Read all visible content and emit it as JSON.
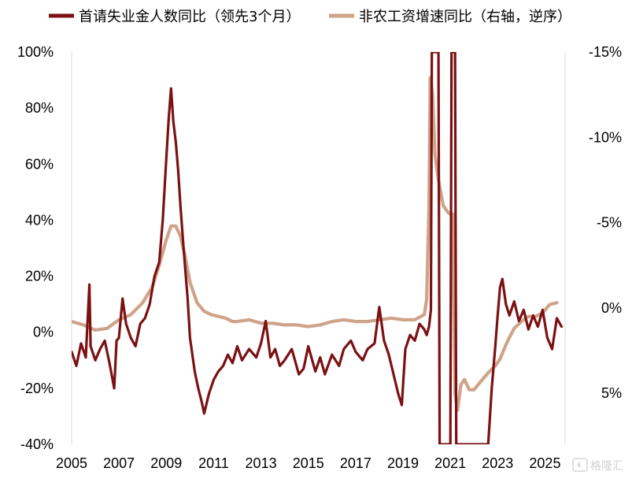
{
  "chart_data": {
    "type": "line",
    "title": "",
    "xlabel": "",
    "ylabel": "",
    "x_ticks": [
      "2005",
      "2007",
      "2009",
      "2011",
      "2013",
      "2015",
      "2017",
      "2019",
      "2021",
      "2023",
      "2025"
    ],
    "y_left": {
      "ticks": [
        100,
        80,
        60,
        40,
        20,
        0,
        -20,
        -40
      ],
      "tick_labels": [
        "100%",
        "80%",
        "60%",
        "40%",
        "20%",
        "0%",
        "-20%",
        "-40%"
      ],
      "range": [
        -40,
        100
      ]
    },
    "y_right": {
      "reversed": true,
      "ticks": [
        -15,
        -10,
        -5,
        0,
        5
      ],
      "tick_labels": [
        "-15%",
        "-10%",
        "-5%",
        "0%",
        "5%"
      ],
      "range": [
        -15,
        8
      ]
    },
    "legend_position": "top",
    "series": [
      {
        "name": "首请失业金人数同比（领先3个月）",
        "axis": "left",
        "color": "#7b1113",
        "points": [
          [
            2005.0,
            -7
          ],
          [
            2005.2,
            -12
          ],
          [
            2005.4,
            -4
          ],
          [
            2005.6,
            -9
          ],
          [
            2005.75,
            17
          ],
          [
            2005.8,
            -5
          ],
          [
            2006.0,
            -10
          ],
          [
            2006.2,
            -6
          ],
          [
            2006.4,
            -3
          ],
          [
            2006.6,
            -11
          ],
          [
            2006.8,
            -20
          ],
          [
            2006.9,
            -3
          ],
          [
            2007.0,
            -2
          ],
          [
            2007.15,
            12
          ],
          [
            2007.3,
            3
          ],
          [
            2007.5,
            -2
          ],
          [
            2007.7,
            -5
          ],
          [
            2007.9,
            3
          ],
          [
            2008.1,
            5
          ],
          [
            2008.3,
            10
          ],
          [
            2008.5,
            20
          ],
          [
            2008.7,
            25
          ],
          [
            2008.85,
            40
          ],
          [
            2009.0,
            62
          ],
          [
            2009.1,
            76
          ],
          [
            2009.2,
            87
          ],
          [
            2009.3,
            75
          ],
          [
            2009.4,
            68
          ],
          [
            2009.5,
            58
          ],
          [
            2009.6,
            45
          ],
          [
            2009.75,
            28
          ],
          [
            2009.9,
            12
          ],
          [
            2010.0,
            -2
          ],
          [
            2010.1,
            -8
          ],
          [
            2010.2,
            -14
          ],
          [
            2010.35,
            -20
          ],
          [
            2010.5,
            -25
          ],
          [
            2010.6,
            -29
          ],
          [
            2010.8,
            -22
          ],
          [
            2011.0,
            -17
          ],
          [
            2011.2,
            -14
          ],
          [
            2011.4,
            -12
          ],
          [
            2011.6,
            -8
          ],
          [
            2011.8,
            -11
          ],
          [
            2012.0,
            -5
          ],
          [
            2012.2,
            -10
          ],
          [
            2012.5,
            -6
          ],
          [
            2012.8,
            -9
          ],
          [
            2013.0,
            -4
          ],
          [
            2013.2,
            4
          ],
          [
            2013.4,
            -9
          ],
          [
            2013.6,
            -6
          ],
          [
            2013.8,
            -12
          ],
          [
            2014.0,
            -10
          ],
          [
            2014.3,
            -6
          ],
          [
            2014.6,
            -15
          ],
          [
            2014.8,
            -13
          ],
          [
            2015.0,
            -5
          ],
          [
            2015.3,
            -14
          ],
          [
            2015.5,
            -9
          ],
          [
            2015.7,
            -15
          ],
          [
            2016.0,
            -8
          ],
          [
            2016.3,
            -12
          ],
          [
            2016.5,
            -6
          ],
          [
            2016.8,
            -3
          ],
          [
            2017.0,
            -7
          ],
          [
            2017.3,
            -10
          ],
          [
            2017.5,
            -6
          ],
          [
            2017.8,
            -4
          ],
          [
            2018.0,
            9
          ],
          [
            2018.2,
            -3
          ],
          [
            2018.4,
            -8
          ],
          [
            2018.6,
            -15
          ],
          [
            2018.8,
            -22
          ],
          [
            2018.95,
            -26
          ],
          [
            2019.1,
            -6
          ],
          [
            2019.3,
            -1
          ],
          [
            2019.5,
            -3
          ],
          [
            2019.7,
            3
          ],
          [
            2019.9,
            1
          ],
          [
            2020.0,
            -1
          ],
          [
            2020.1,
            2
          ],
          [
            2020.18,
            8
          ],
          [
            2020.22,
            100
          ],
          [
            2020.5,
            100
          ],
          [
            2020.55,
            -40
          ],
          [
            2021.0,
            -40
          ],
          [
            2021.05,
            100
          ],
          [
            2021.2,
            100
          ],
          [
            2021.25,
            -40
          ],
          [
            2022.6,
            -40
          ],
          [
            2022.75,
            -20
          ],
          [
            2022.9,
            -5
          ],
          [
            2023.0,
            6
          ],
          [
            2023.1,
            16
          ],
          [
            2023.2,
            19
          ],
          [
            2023.35,
            10
          ],
          [
            2023.5,
            6
          ],
          [
            2023.7,
            11
          ],
          [
            2023.9,
            4
          ],
          [
            2024.1,
            8
          ],
          [
            2024.3,
            1
          ],
          [
            2024.5,
            6
          ],
          [
            2024.7,
            2
          ],
          [
            2024.9,
            8
          ],
          [
            2025.1,
            -2
          ],
          [
            2025.3,
            -6
          ],
          [
            2025.5,
            5
          ],
          [
            2025.7,
            2
          ]
        ]
      },
      {
        "name": "非农工资增速同比（右轴，逆序）",
        "axis": "right",
        "color": "#cfa38a",
        "points": [
          [
            2005.0,
            0.8
          ],
          [
            2005.5,
            1.0
          ],
          [
            2006.0,
            1.3
          ],
          [
            2006.5,
            1.2
          ],
          [
            2007.0,
            0.7
          ],
          [
            2007.5,
            0.4
          ],
          [
            2008.0,
            -0.3
          ],
          [
            2008.4,
            -1.2
          ],
          [
            2008.7,
            -2.5
          ],
          [
            2009.0,
            -4.0
          ],
          [
            2009.2,
            -4.8
          ],
          [
            2009.4,
            -4.8
          ],
          [
            2009.6,
            -4.2
          ],
          [
            2009.8,
            -3.0
          ],
          [
            2010.0,
            -1.5
          ],
          [
            2010.3,
            -0.3
          ],
          [
            2010.6,
            0.2
          ],
          [
            2010.9,
            0.4
          ],
          [
            2011.2,
            0.5
          ],
          [
            2011.5,
            0.6
          ],
          [
            2011.8,
            0.8
          ],
          [
            2012.0,
            0.8
          ],
          [
            2012.5,
            0.7
          ],
          [
            2013.0,
            0.9
          ],
          [
            2013.5,
            0.9
          ],
          [
            2014.0,
            1.0
          ],
          [
            2014.5,
            1.0
          ],
          [
            2015.0,
            1.1
          ],
          [
            2015.5,
            1.0
          ],
          [
            2016.0,
            0.8
          ],
          [
            2016.5,
            0.7
          ],
          [
            2017.0,
            0.8
          ],
          [
            2017.5,
            0.8
          ],
          [
            2018.0,
            0.7
          ],
          [
            2018.5,
            0.6
          ],
          [
            2019.0,
            0.7
          ],
          [
            2019.5,
            0.7
          ],
          [
            2019.9,
            0.4
          ],
          [
            2020.0,
            -0.5
          ],
          [
            2020.1,
            -6.0
          ],
          [
            2020.15,
            -13.5
          ],
          [
            2020.25,
            -12.5
          ],
          [
            2020.35,
            -9.0
          ],
          [
            2020.5,
            -7.5
          ],
          [
            2020.7,
            -6.0
          ],
          [
            2020.9,
            -5.6
          ],
          [
            2021.0,
            -5.5
          ],
          [
            2021.1,
            -5.5
          ],
          [
            2021.2,
            5.0
          ],
          [
            2021.3,
            6.0
          ],
          [
            2021.45,
            4.5
          ],
          [
            2021.6,
            4.2
          ],
          [
            2021.8,
            4.8
          ],
          [
            2022.0,
            4.8
          ],
          [
            2022.3,
            4.3
          ],
          [
            2022.6,
            3.8
          ],
          [
            2022.9,
            3.4
          ],
          [
            2023.1,
            3.0
          ],
          [
            2023.4,
            2.0
          ],
          [
            2023.7,
            1.2
          ],
          [
            2024.0,
            0.8
          ],
          [
            2024.3,
            0.5
          ],
          [
            2024.6,
            0.5
          ],
          [
            2024.9,
            0.3
          ],
          [
            2025.2,
            -0.2
          ],
          [
            2025.5,
            -0.3
          ]
        ]
      }
    ]
  },
  "watermark": {
    "text": "格隆汇"
  }
}
